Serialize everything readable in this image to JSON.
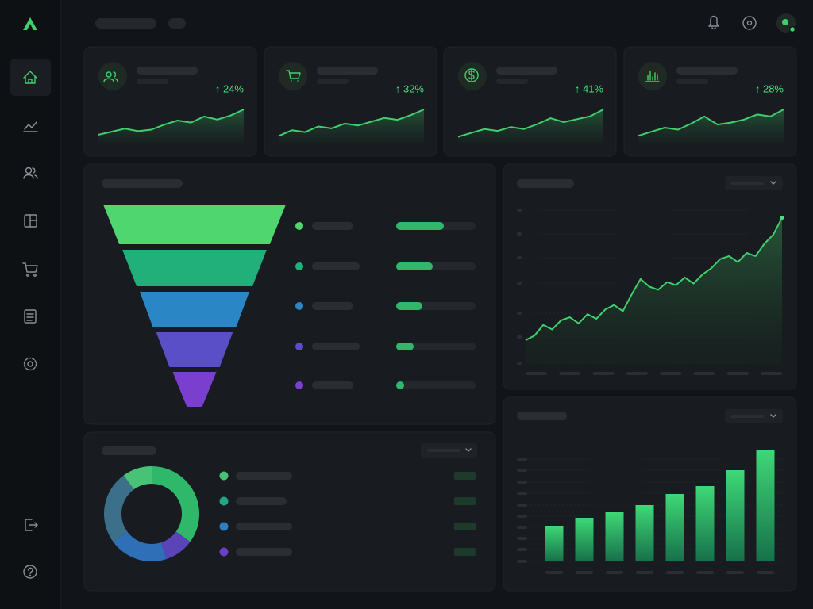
{
  "kpis": [
    {
      "change": "↑ 24%",
      "trend": [
        8,
        14,
        20,
        15,
        18,
        28,
        36,
        32,
        44,
        38,
        46,
        58
      ]
    },
    {
      "change": "↑ 32%",
      "trend": [
        6,
        18,
        14,
        26,
        22,
        32,
        28,
        36,
        44,
        40,
        50,
        62
      ]
    },
    {
      "change": "↑ 41%",
      "trend": [
        4,
        12,
        20,
        16,
        24,
        20,
        30,
        42,
        34,
        40,
        46,
        60
      ]
    },
    {
      "change": "↑ 28%",
      "trend": [
        6,
        14,
        22,
        18,
        30,
        44,
        28,
        32,
        38,
        48,
        44,
        58
      ]
    }
  ],
  "funnel": {
    "values": [
      100,
      79,
      60,
      42,
      24
    ],
    "colors": [
      "#4fd66e",
      "#22b07a",
      "#2a86c4",
      "#5b4fc8",
      "#7b3fcf"
    ],
    "progress": [
      60,
      46,
      33,
      22,
      10
    ]
  },
  "area": {
    "values": [
      15,
      18,
      25,
      22,
      28,
      30,
      26,
      32,
      29,
      35,
      38,
      34,
      45,
      55,
      50,
      48,
      53,
      51,
      56,
      52,
      58,
      62,
      68,
      70,
      66,
      72,
      70,
      78,
      84,
      95
    ]
  },
  "donut": {
    "values": [
      35,
      10,
      20,
      25,
      10
    ],
    "colors": [
      "#2fb86a",
      "#5b43b8",
      "#2f6fb8",
      "#3b6f8a",
      "#48c274"
    ]
  },
  "bars": {
    "values": [
      45,
      55,
      62,
      71,
      85,
      95,
      115,
      141
    ]
  }
}
